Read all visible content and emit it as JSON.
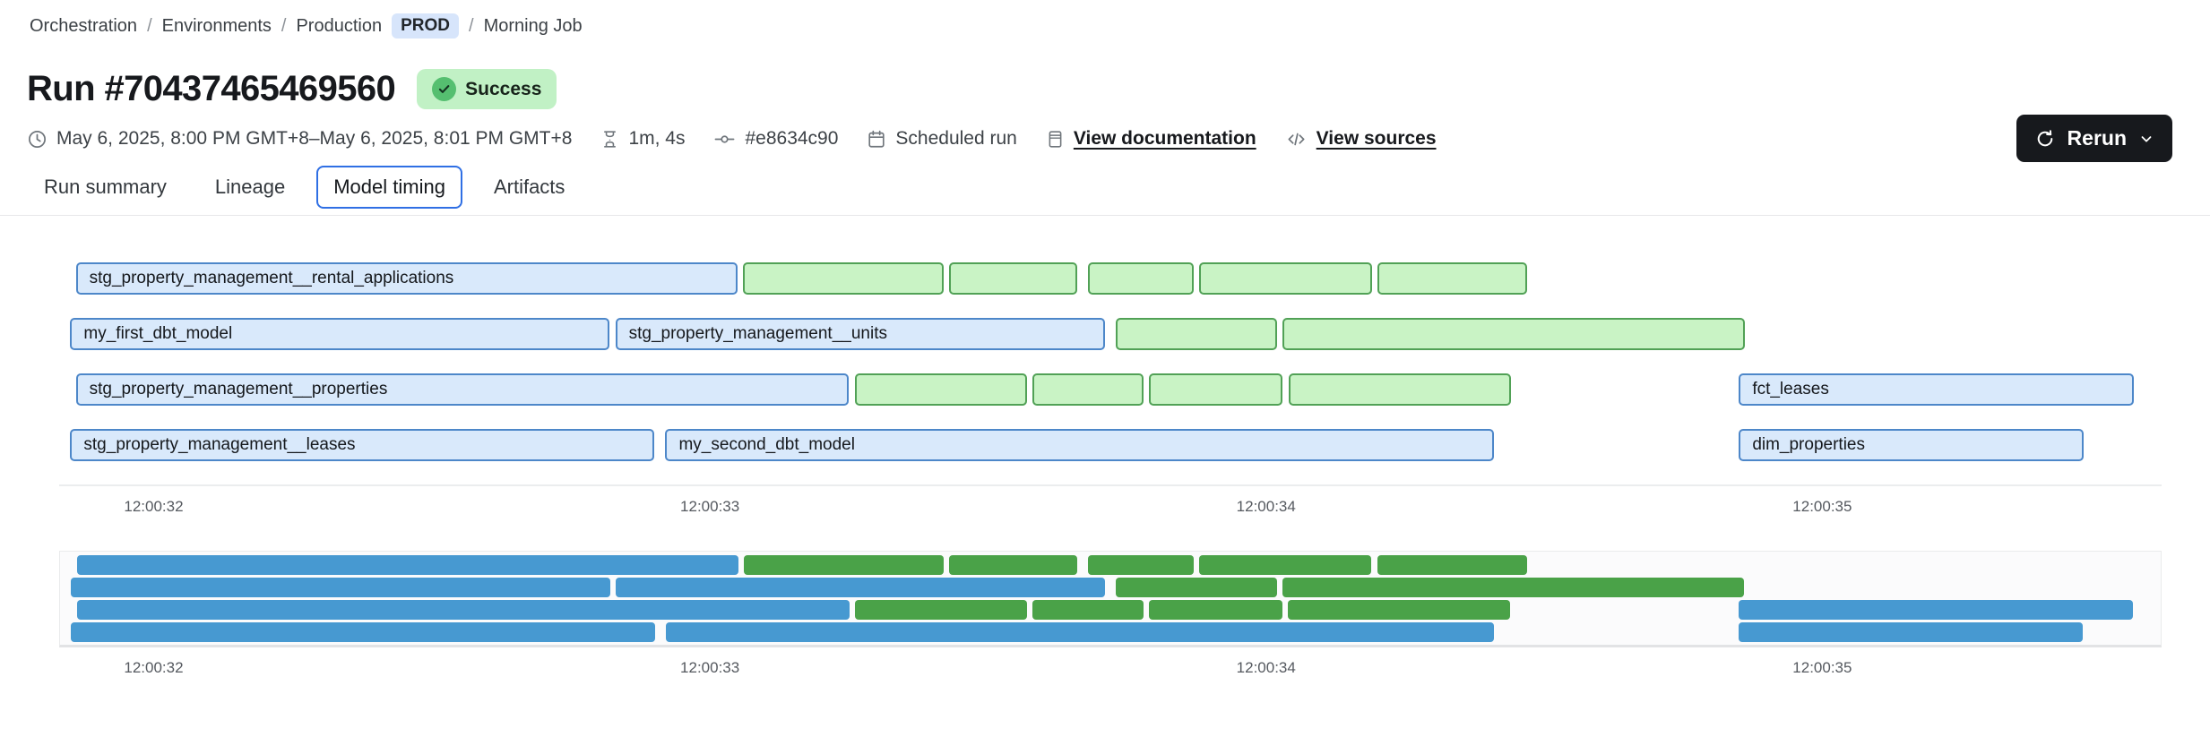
{
  "breadcrumb": {
    "separator": "/",
    "items": [
      "Orchestration",
      "Environments",
      "Production"
    ],
    "environment_badge": "PROD",
    "current": "Morning Job"
  },
  "header": {
    "run_title": "Run #70437465469560",
    "status_badge": "Success"
  },
  "toolbar": {
    "rerun_label": "Rerun"
  },
  "meta": {
    "time_range": "May 6, 2025, 8:00 PM GMT+8–May 6, 2025, 8:01 PM GMT+8",
    "duration": "1m, 4s",
    "commit": "#e8634c90",
    "trigger": "Scheduled run",
    "view_documentation": "View documentation",
    "view_sources": "View sources"
  },
  "tabs": [
    {
      "label": "Run summary",
      "active": false
    },
    {
      "label": "Lineage",
      "active": false
    },
    {
      "label": "Model timing",
      "active": true
    },
    {
      "label": "Artifacts",
      "active": false
    }
  ],
  "chart_data": {
    "type": "gantt",
    "title": "Model timing",
    "axis": {
      "start_s": 31.83,
      "end_s": 35.61,
      "ticks": [
        {
          "label": "12:00:32",
          "s": 32
        },
        {
          "label": "12:00:33",
          "s": 33
        },
        {
          "label": "12:00:34",
          "s": 34
        },
        {
          "label": "12:00:35",
          "s": 35
        }
      ]
    },
    "colors": {
      "model_fill": "#d9e9fb",
      "model_border": "#4d87c9",
      "test_fill": "#c9f3c5",
      "test_border": "#51a156",
      "minimap_model": "#4799d1",
      "minimap_test": "#4aa248"
    },
    "rows": [
      [
        {
          "label": "stg_property_management__rental_applications",
          "kind": "model",
          "start_s": 31.86,
          "end_s": 33.05
        },
        {
          "label": "",
          "kind": "test",
          "start_s": 33.06,
          "end_s": 33.42
        },
        {
          "label": "",
          "kind": "test",
          "start_s": 33.43,
          "end_s": 33.66
        },
        {
          "label": "",
          "kind": "test",
          "start_s": 33.68,
          "end_s": 33.87
        },
        {
          "label": "",
          "kind": "test",
          "start_s": 33.88,
          "end_s": 34.19
        },
        {
          "label": "",
          "kind": "test",
          "start_s": 34.2,
          "end_s": 34.47
        }
      ],
      [
        {
          "label": "my_first_dbt_model",
          "kind": "model",
          "start_s": 31.85,
          "end_s": 32.82
        },
        {
          "label": "stg_property_management__units",
          "kind": "model",
          "start_s": 32.83,
          "end_s": 33.71
        },
        {
          "label": "",
          "kind": "test",
          "start_s": 33.73,
          "end_s": 34.02
        },
        {
          "label": "",
          "kind": "test",
          "start_s": 34.03,
          "end_s": 34.86
        }
      ],
      [
        {
          "label": "stg_property_management__properties",
          "kind": "model",
          "start_s": 31.86,
          "end_s": 33.25
        },
        {
          "label": "",
          "kind": "test",
          "start_s": 33.26,
          "end_s": 33.57
        },
        {
          "label": "",
          "kind": "test",
          "start_s": 33.58,
          "end_s": 33.78
        },
        {
          "label": "",
          "kind": "test",
          "start_s": 33.79,
          "end_s": 34.03
        },
        {
          "label": "",
          "kind": "test",
          "start_s": 34.04,
          "end_s": 34.44
        },
        {
          "label": "fct_leases",
          "kind": "model",
          "start_s": 34.85,
          "end_s": 35.56
        }
      ],
      [
        {
          "label": "stg_property_management__leases",
          "kind": "model",
          "start_s": 31.85,
          "end_s": 32.9
        },
        {
          "label": "my_second_dbt_model",
          "kind": "model",
          "start_s": 32.92,
          "end_s": 34.41
        },
        {
          "label": "dim_properties",
          "kind": "model",
          "start_s": 34.85,
          "end_s": 35.47
        }
      ]
    ]
  }
}
